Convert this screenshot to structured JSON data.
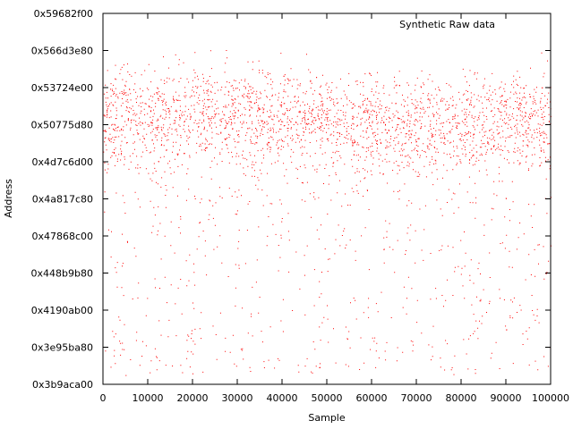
{
  "chart_data": {
    "type": "scatter",
    "title": "",
    "xlabel": "Sample",
    "ylabel": "Address",
    "xlim": [
      0,
      100000
    ],
    "x_ticks": [
      0,
      10000,
      20000,
      30000,
      40000,
      50000,
      60000,
      70000,
      80000,
      90000,
      100000
    ],
    "x_tick_labels": [
      "0",
      "10000",
      "20000",
      "30000",
      "40000",
      "50000",
      "60000",
      "70000",
      "80000",
      "90000",
      "100000"
    ],
    "y_tick_labels": [
      "0x3b9aca00",
      "0x3e95ba80",
      "0x4190ab00",
      "0x448b9b80",
      "0x47868c00",
      "0x4a817c80",
      "0x4d7c6d00",
      "0x50775d80",
      "0x53724e00",
      "0x566d3e80",
      "0x59682f00"
    ],
    "ylim_hex": [
      "0x3b9aca00",
      "0x59682f00"
    ],
    "grid": false,
    "legend_position": "top-right",
    "series": [
      {
        "name": "Synthetic Raw data",
        "color": "#ff0000",
        "marker": "dot",
        "description_of_distribution": "dense band roughly between 0x4a817c80 and 0x566d3e80, sparse points down to about 0x3c5",
        "point_count_estimate": 30000
      }
    ]
  }
}
